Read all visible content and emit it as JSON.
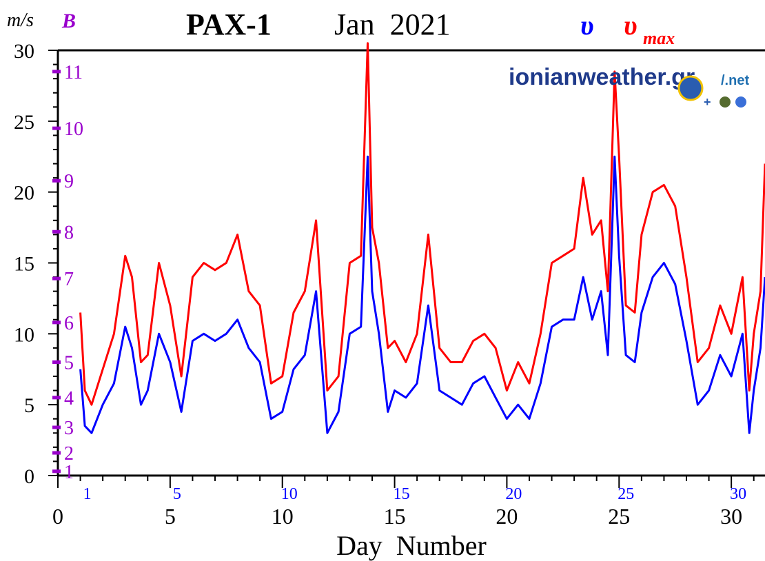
{
  "chart_data": {
    "type": "line",
    "title_station": "PAX-1",
    "title_period": "Jan  2021",
    "y_unit_label": "m/s",
    "beaufort_label": "B",
    "legend": {
      "v_symbol": "υ",
      "vmax_symbol": "υ",
      "vmax_subscript": "max",
      "placement": "top-right"
    },
    "watermark": {
      "main": "ionianweather.gr",
      "suffix": "/.net"
    },
    "xlabel": "Day  Number",
    "xlim": [
      0,
      31.5
    ],
    "ylim": [
      0,
      30
    ],
    "x_ticks": [
      0,
      5,
      10,
      15,
      20,
      25,
      30
    ],
    "y_ticks": [
      0,
      5,
      10,
      15,
      20,
      25,
      30
    ],
    "day_marks": [
      1,
      5,
      10,
      15,
      20,
      25,
      30
    ],
    "beaufort_scale": [
      {
        "label": "1",
        "ms": 0.3
      },
      {
        "label": "2",
        "ms": 1.6
      },
      {
        "label": "3",
        "ms": 3.4
      },
      {
        "label": "4",
        "ms": 5.5
      },
      {
        "label": "5",
        "ms": 8.0
      },
      {
        "label": "6",
        "ms": 10.8
      },
      {
        "label": "7",
        "ms": 13.9
      },
      {
        "label": "8",
        "ms": 17.2
      },
      {
        "label": "9",
        "ms": 20.8
      },
      {
        "label": "10",
        "ms": 24.5
      },
      {
        "label": "11",
        "ms": 28.5
      }
    ],
    "series": [
      {
        "name": "υmax",
        "color": "#ff0000",
        "x": [
          1.0,
          1.2,
          1.5,
          2.0,
          2.5,
          3.0,
          3.3,
          3.7,
          4.0,
          4.5,
          5.0,
          5.5,
          6.0,
          6.5,
          7.0,
          7.5,
          8.0,
          8.5,
          9.0,
          9.5,
          10.0,
          10.5,
          11.0,
          11.5,
          12.0,
          12.5,
          13.0,
          13.5,
          13.8,
          14.0,
          14.3,
          14.7,
          15.0,
          15.5,
          16.0,
          16.5,
          17.0,
          17.5,
          18.0,
          18.5,
          19.0,
          19.5,
          20.0,
          20.5,
          21.0,
          21.5,
          22.0,
          22.5,
          23.0,
          23.4,
          23.8,
          24.2,
          24.5,
          24.8,
          25.0,
          25.3,
          25.7,
          26.0,
          26.5,
          27.0,
          27.5,
          28.0,
          28.5,
          29.0,
          29.5,
          30.0,
          30.5,
          30.8,
          31.0,
          31.3,
          31.5
        ],
        "values": [
          11.5,
          6.0,
          5.0,
          7.5,
          10.0,
          15.5,
          14.0,
          8.0,
          8.5,
          15.0,
          12.0,
          7.0,
          14.0,
          15.0,
          14.5,
          15.0,
          17.0,
          13.0,
          12.0,
          6.5,
          7.0,
          11.5,
          13.0,
          18.0,
          6.0,
          7.0,
          15.0,
          15.5,
          30.5,
          17.5,
          15.0,
          9.0,
          9.5,
          8.0,
          10.0,
          17.0,
          9.0,
          8.0,
          8.0,
          9.5,
          10.0,
          9.0,
          6.0,
          8.0,
          6.5,
          10.0,
          15.0,
          15.5,
          16.0,
          21.0,
          17.0,
          18.0,
          13.0,
          28.5,
          22.5,
          12.0,
          11.5,
          17.0,
          20.0,
          20.5,
          19.0,
          14.0,
          8.0,
          9.0,
          12.0,
          10.0,
          14.0,
          6.0,
          10.0,
          13.0,
          22.0
        ]
      },
      {
        "name": "υ",
        "color": "#0000ff",
        "x": [
          1.0,
          1.2,
          1.5,
          2.0,
          2.5,
          3.0,
          3.3,
          3.7,
          4.0,
          4.5,
          5.0,
          5.5,
          6.0,
          6.5,
          7.0,
          7.5,
          8.0,
          8.5,
          9.0,
          9.5,
          10.0,
          10.5,
          11.0,
          11.5,
          12.0,
          12.5,
          13.0,
          13.5,
          13.8,
          14.0,
          14.3,
          14.7,
          15.0,
          15.5,
          16.0,
          16.5,
          17.0,
          17.5,
          18.0,
          18.5,
          19.0,
          19.5,
          20.0,
          20.5,
          21.0,
          21.5,
          22.0,
          22.5,
          23.0,
          23.4,
          23.8,
          24.2,
          24.5,
          24.8,
          25.0,
          25.3,
          25.7,
          26.0,
          26.5,
          27.0,
          27.5,
          28.0,
          28.5,
          29.0,
          29.5,
          30.0,
          30.5,
          30.8,
          31.0,
          31.3,
          31.5
        ],
        "values": [
          7.5,
          3.5,
          3.0,
          5.0,
          6.5,
          10.5,
          9.0,
          5.0,
          6.0,
          10.0,
          8.0,
          4.5,
          9.5,
          10.0,
          9.5,
          10.0,
          11.0,
          9.0,
          8.0,
          4.0,
          4.5,
          7.5,
          8.5,
          13.0,
          3.0,
          4.5,
          10.0,
          10.5,
          22.5,
          13.0,
          10.0,
          4.5,
          6.0,
          5.5,
          6.5,
          12.0,
          6.0,
          5.5,
          5.0,
          6.5,
          7.0,
          5.5,
          4.0,
          5.0,
          4.0,
          6.5,
          10.5,
          11.0,
          11.0,
          14.0,
          11.0,
          13.0,
          8.5,
          22.5,
          15.5,
          8.5,
          8.0,
          11.5,
          14.0,
          15.0,
          13.5,
          9.5,
          5.0,
          6.0,
          8.5,
          7.0,
          10.0,
          3.0,
          6.0,
          9.0,
          14.0
        ]
      }
    ]
  }
}
